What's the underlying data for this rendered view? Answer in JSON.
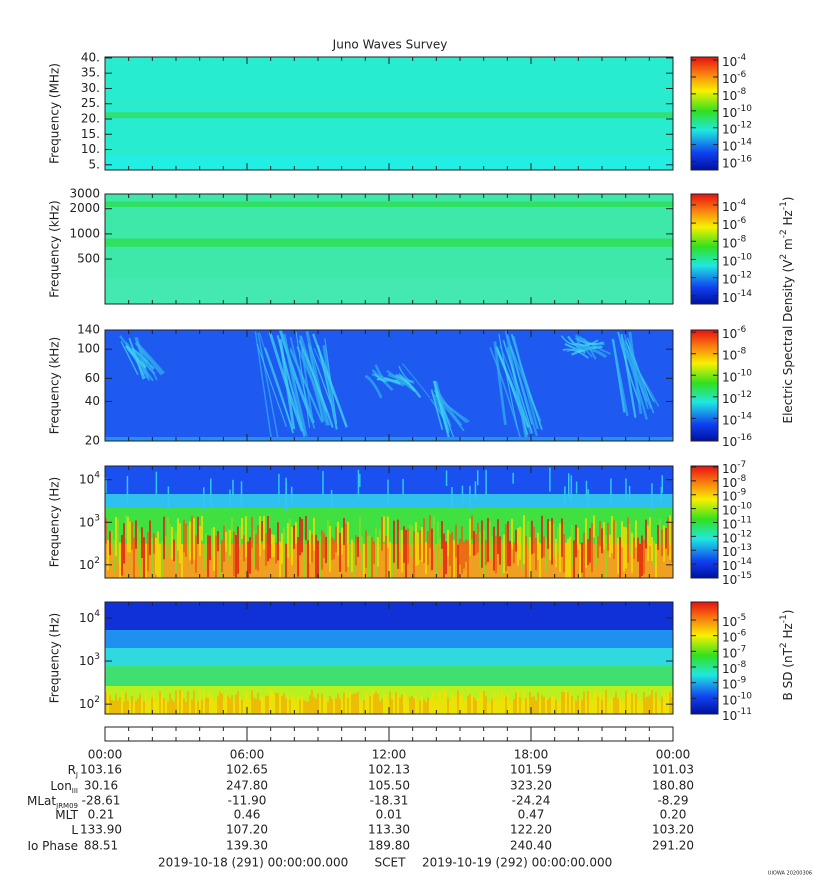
{
  "title": "Juno Waves Survey",
  "panels": [
    {
      "ylabel": "Frequency (MHz)",
      "scale": "linear",
      "ylim": [
        3.3,
        40.3
      ],
      "yticks": [
        {
          "value": 40,
          "label": "40."
        },
        {
          "value": 35,
          "label": "35."
        },
        {
          "value": 30,
          "label": "30."
        },
        {
          "value": 25,
          "label": "25."
        },
        {
          "value": 20,
          "label": "20."
        },
        {
          "value": 15,
          "label": "15."
        },
        {
          "value": 10,
          "label": "10."
        },
        {
          "value": 5,
          "label": "5."
        }
      ],
      "clim": [
        -17.0,
        -3.64
      ],
      "cticks": [
        {
          "base": "10",
          "exp": -4
        },
        {
          "base": "10",
          "exp": -6
        },
        {
          "base": "10",
          "exp": -8
        },
        {
          "base": "10",
          "exp": -10
        },
        {
          "base": "10",
          "exp": -12
        },
        {
          "base": "10",
          "exp": -14
        },
        {
          "base": "10",
          "exp": -16
        }
      ]
    },
    {
      "ylabel": "Frequency (kHz)",
      "scale": "log",
      "ylim": [
        145,
        3000
      ],
      "yticks": [
        3000,
        2000,
        1000,
        500
      ],
      "clim": [
        -14.9,
        -2.8
      ],
      "cticks": [
        {
          "base": "10",
          "exp": -4
        },
        {
          "base": "10",
          "exp": -6
        },
        {
          "base": "10",
          "exp": -8
        },
        {
          "base": "10",
          "exp": -10
        },
        {
          "base": "10",
          "exp": -12
        },
        {
          "base": "10",
          "exp": -14
        }
      ]
    },
    {
      "ylabel": "Frequency (kHz)",
      "scale": "log",
      "ylim": [
        20,
        140
      ],
      "yticks": [
        140,
        100,
        60,
        40,
        20
      ],
      "clim": [
        -16.1,
        -5.8
      ],
      "cticks": [
        {
          "base": "10",
          "exp": -6
        },
        {
          "base": "10",
          "exp": -8
        },
        {
          "base": "10",
          "exp": -10
        },
        {
          "base": "10",
          "exp": -12
        },
        {
          "base": "10",
          "exp": -14
        },
        {
          "base": "10",
          "exp": -16
        }
      ]
    },
    {
      "ylabel": "Frequency (Hz)",
      "scale": "log",
      "ylim": [
        49,
        21000
      ],
      "yticks": [
        {
          "value": 10000,
          "base": "10",
          "exp": 4
        },
        {
          "value": 1000,
          "base": "10",
          "exp": 3
        },
        {
          "value": 100,
          "base": "10",
          "exp": 2
        }
      ],
      "clim": [
        -15,
        -6.93
      ],
      "cticks": [
        {
          "base": "10",
          "exp": -7
        },
        {
          "base": "10",
          "exp": -8
        },
        {
          "base": "10",
          "exp": -9
        },
        {
          "base": "10",
          "exp": -10
        },
        {
          "base": "10",
          "exp": -11
        },
        {
          "base": "10",
          "exp": -12
        },
        {
          "base": "10",
          "exp": -13
        },
        {
          "base": "10",
          "exp": -14
        },
        {
          "base": "10",
          "exp": -15
        }
      ]
    },
    {
      "ylabel": "Frequency (Hz)",
      "scale": "log",
      "ylim": [
        59,
        23500
      ],
      "yticks": [
        {
          "value": 10000,
          "base": "10",
          "exp": 4
        },
        {
          "value": 1000,
          "base": "10",
          "exp": 3
        },
        {
          "value": 100,
          "base": "10",
          "exp": 2
        }
      ],
      "clim": [
        -11,
        -3.85
      ],
      "cticks": [
        {
          "base": "10",
          "exp": -5
        },
        {
          "base": "10",
          "exp": -6
        },
        {
          "base": "10",
          "exp": -7
        },
        {
          "base": "10",
          "exp": -8
        },
        {
          "base": "10",
          "exp": -9
        },
        {
          "base": "10",
          "exp": -10
        },
        {
          "base": "10",
          "exp": -11
        }
      ]
    }
  ],
  "clabels": [
    {
      "parts": [
        {
          "t": "Electric Spectral Density (V"
        },
        {
          "sup": "2"
        },
        {
          "t": " m"
        },
        {
          "sup": "-2"
        },
        {
          "t": " Hz"
        },
        {
          "sup": "-1"
        },
        {
          "t": ")"
        }
      ]
    },
    {
      "parts": [
        {
          "t": "B SD (nT"
        },
        {
          "sup": "2"
        },
        {
          "t": " Hz"
        },
        {
          "sup": "-1"
        },
        {
          "t": ")"
        }
      ]
    }
  ],
  "xticks": [
    "00:00",
    "06:00",
    "12:00",
    "18:00",
    "00:00"
  ],
  "ephemeris": [
    {
      "label": "R",
      "sub": "J",
      "values": [
        "103.16",
        "102.65",
        "102.13",
        "101.59",
        "101.03"
      ]
    },
    {
      "label": "Lon",
      "sub": "III",
      "values": [
        "30.16",
        "247.80",
        "105.50",
        "323.20",
        "180.80"
      ]
    },
    {
      "label": "MLat",
      "sub": "JRM09",
      "values": [
        "-28.61",
        "-11.90",
        "-18.31",
        "-24.24",
        "-8.29"
      ]
    },
    {
      "label": "MLT",
      "values": [
        "0.21",
        "0.46",
        "0.01",
        "0.47",
        "0.20"
      ]
    },
    {
      "label": "L",
      "values": [
        "133.90",
        "107.20",
        "113.30",
        "122.20",
        "103.20"
      ]
    },
    {
      "label": "Io Phase",
      "values": [
        "88.51",
        "139.30",
        "189.80",
        "240.40",
        "291.20"
      ]
    }
  ],
  "footer": {
    "start": "2019-10-18 (291) 00:00:00.000",
    "scet": "SCET",
    "end": "2019-10-19 (292) 00:00:00.000"
  },
  "stamp": "UIOWA 20200306"
}
